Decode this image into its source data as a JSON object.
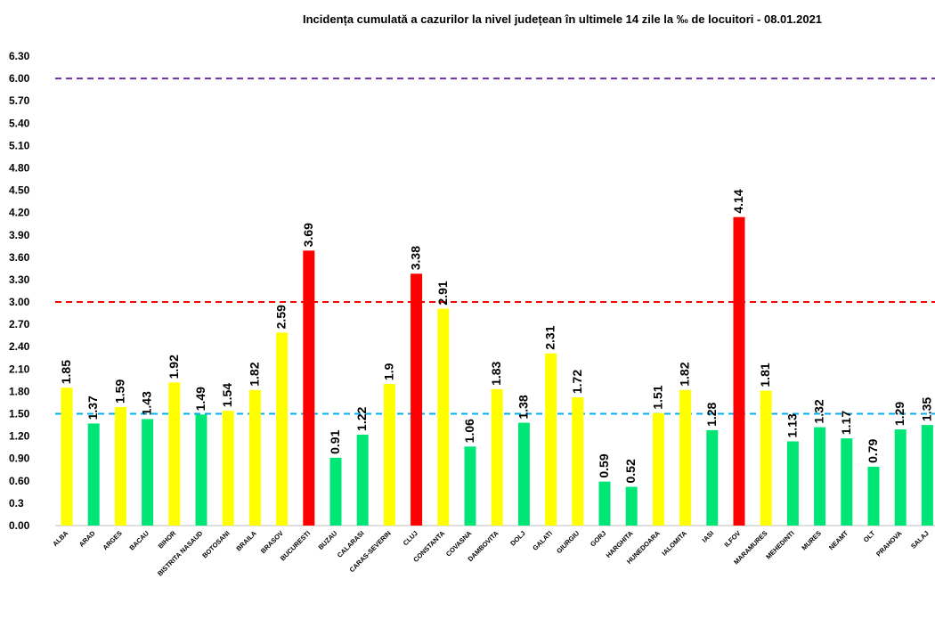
{
  "chart_data": {
    "type": "bar",
    "title": "Incidența cumulată a cazurilor la nivel județean în ultimele 14 zile la ‰ de locuitori - 08.01.2021",
    "xlabel": "",
    "ylabel": "",
    "ylim": [
      0,
      6.3
    ],
    "yticks": [
      "0.00",
      "0.3",
      "0.60",
      "0.90",
      "1.20",
      "1.50",
      "1.80",
      "2.10",
      "2.40",
      "2.70",
      "3.00",
      "3.30",
      "3.60",
      "3.90",
      "4.20",
      "4.50",
      "4.80",
      "5.10",
      "5.40",
      "5.70",
      "6.00",
      "6.30"
    ],
    "grid": false,
    "categories": [
      "ALBA",
      "ARAD",
      "ARGES",
      "BACAU",
      "BIHOR",
      "BISTRITA NASAUD",
      "BOTOSANI",
      "BRAILA",
      "BRASOV",
      "BUCURESTI",
      "BUZAU",
      "CALARASI",
      "CARAS-SEVERIN",
      "CLUJ",
      "CONSTANTA",
      "COVASNA",
      "DAMBOVITA",
      "DOLJ",
      "GALATI",
      "GIURGIU",
      "GORJ",
      "HARGHITA",
      "HUNEDOARA",
      "IALOMITA",
      "IASI",
      "ILFOV",
      "MARAMURES",
      "MEHEDINTI",
      "MURES",
      "NEAMT",
      "OLT",
      "PRAHOVA",
      "SALAJ"
    ],
    "values": [
      1.85,
      1.37,
      1.59,
      1.43,
      1.92,
      1.49,
      1.54,
      1.82,
      2.59,
      3.69,
      0.91,
      1.22,
      1.9,
      3.38,
      2.91,
      1.06,
      1.83,
      1.38,
      2.31,
      1.72,
      0.59,
      0.52,
      1.51,
      1.82,
      1.28,
      4.14,
      1.81,
      1.13,
      1.32,
      1.17,
      0.79,
      1.29,
      1.35
    ],
    "value_labels": [
      "1.85",
      "1.37",
      "1.59",
      "1.43",
      "1.92",
      "1.49",
      "1.54",
      "1.82",
      "2.59",
      "3.69",
      "0.91",
      "1.22",
      "1.9",
      "3.38",
      "2.91",
      "1.06",
      "1.83",
      "1.38",
      "2.31",
      "1.72",
      "0.59",
      "0.52",
      "1.51",
      "1.82",
      "1.28",
      "4.14",
      "1.81",
      "1.13",
      "1.32",
      "1.17",
      "0.79",
      "1.29",
      "1.35"
    ],
    "colors": {
      "green": "#00e676",
      "yellow": "#ffff00",
      "red": "#ff0000"
    },
    "thresholds": [
      {
        "value": 1.5,
        "color": "#00b0f0"
      },
      {
        "value": 3.0,
        "color": "#ff0000"
      },
      {
        "value": 6.0,
        "color": "#7030a0"
      }
    ]
  }
}
